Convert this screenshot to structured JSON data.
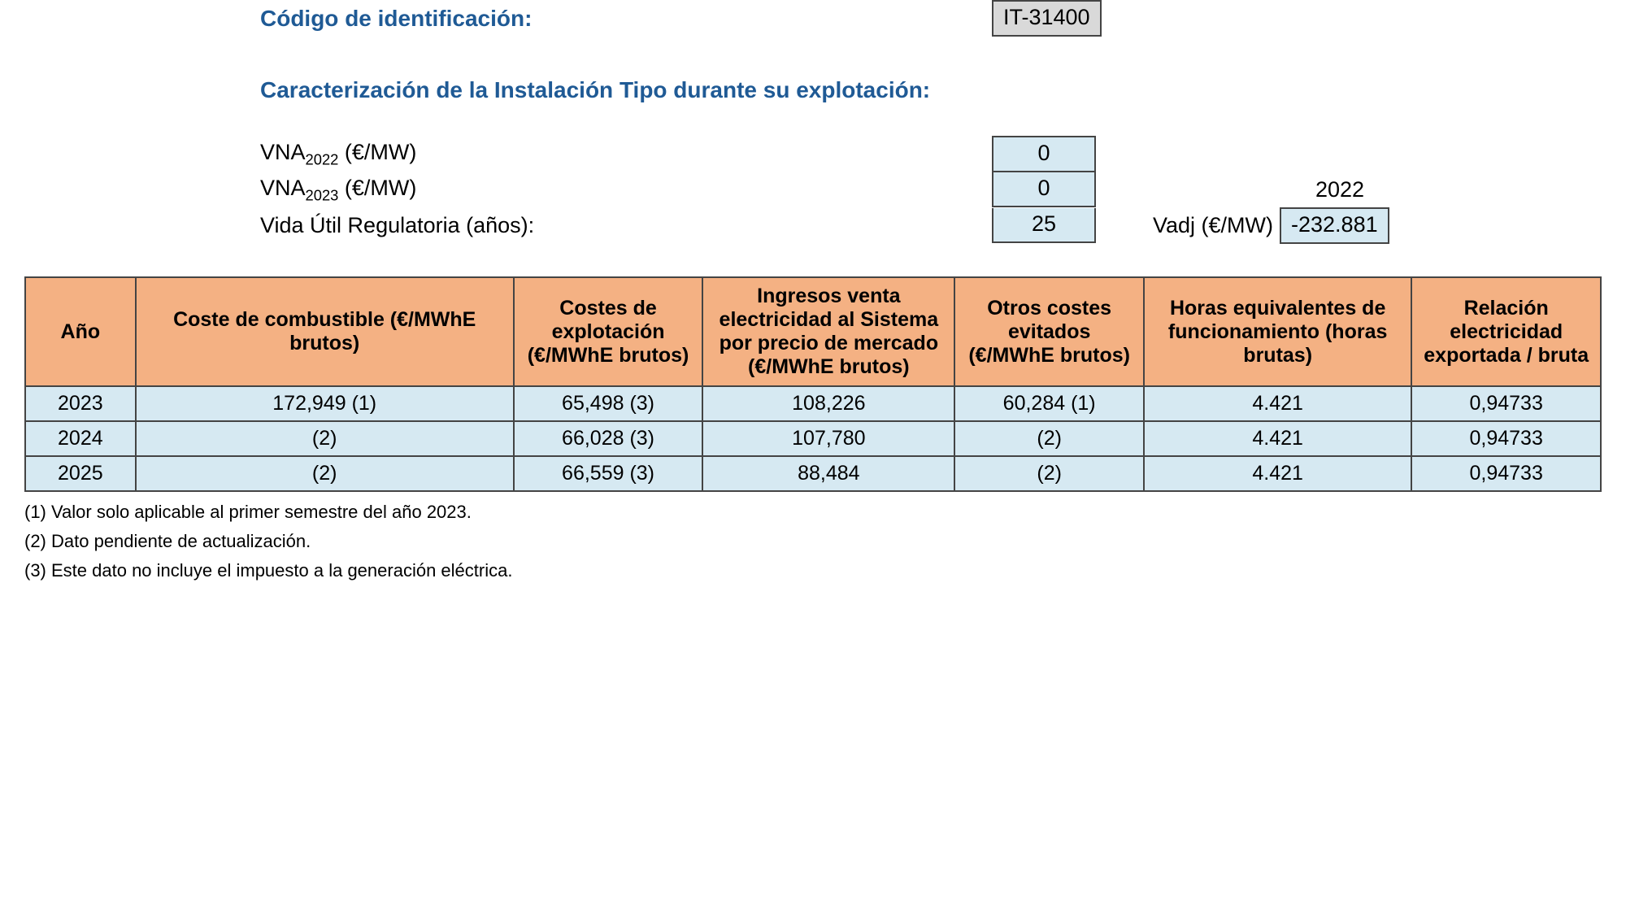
{
  "header": {
    "codigo_label": "Código de identificación:",
    "codigo_value": "IT-31400",
    "caracterizacion_label": "Caracterización de la Instalación Tipo durante su explotación:",
    "vna2022_label_prefix": "VNA",
    "vna2022_label_sub": "2022",
    "vna2022_label_suffix": " (€/MW)",
    "vna2022_value": "0",
    "vna2023_label_prefix": "VNA",
    "vna2023_label_sub": "2023",
    "vna2023_label_suffix": " (€/MW)",
    "vna2023_value": "0",
    "year_right": "2022",
    "vida_util_label": "Vida Útil Regulatoria (años):",
    "vida_util_value": "25",
    "vadj_label": "Vadj (€/MW)",
    "vadj_value": "-232.881"
  },
  "table": {
    "columns": [
      "Año",
      "Coste de combustible (€/MWhE brutos)",
      "Costes de explotación (€/MWhE brutos)",
      "Ingresos venta electricidad al Sistema por precio de mercado (€/MWhE brutos)",
      "Otros costes evitados (€/MWhE brutos)",
      "Horas equivalentes de funcionamiento (horas brutas)",
      "Relación electricidad exportada / bruta"
    ],
    "col_widths_pct": [
      7,
      24,
      12,
      16,
      12,
      17,
      12
    ],
    "header_bg": "#f4b183",
    "row_bg": "#d6e9f2",
    "border_color": "#444444",
    "rows": [
      [
        "2023",
        "172,949 (1)",
        "65,498 (3)",
        "108,226",
        "60,284 (1)",
        "4.421",
        "0,94733"
      ],
      [
        "2024",
        "(2)",
        "66,028 (3)",
        "107,780",
        "(2)",
        "4.421",
        "0,94733"
      ],
      [
        "2025",
        "(2)",
        "66,559 (3)",
        "88,484",
        "(2)",
        "4.421",
        "0,94733"
      ]
    ]
  },
  "footnotes": [
    "(1) Valor solo aplicable al primer semestre del año 2023.",
    "(2) Dato pendiente de actualización.",
    "(3) Este dato no incluye el impuesto a la generación eléctrica."
  ]
}
